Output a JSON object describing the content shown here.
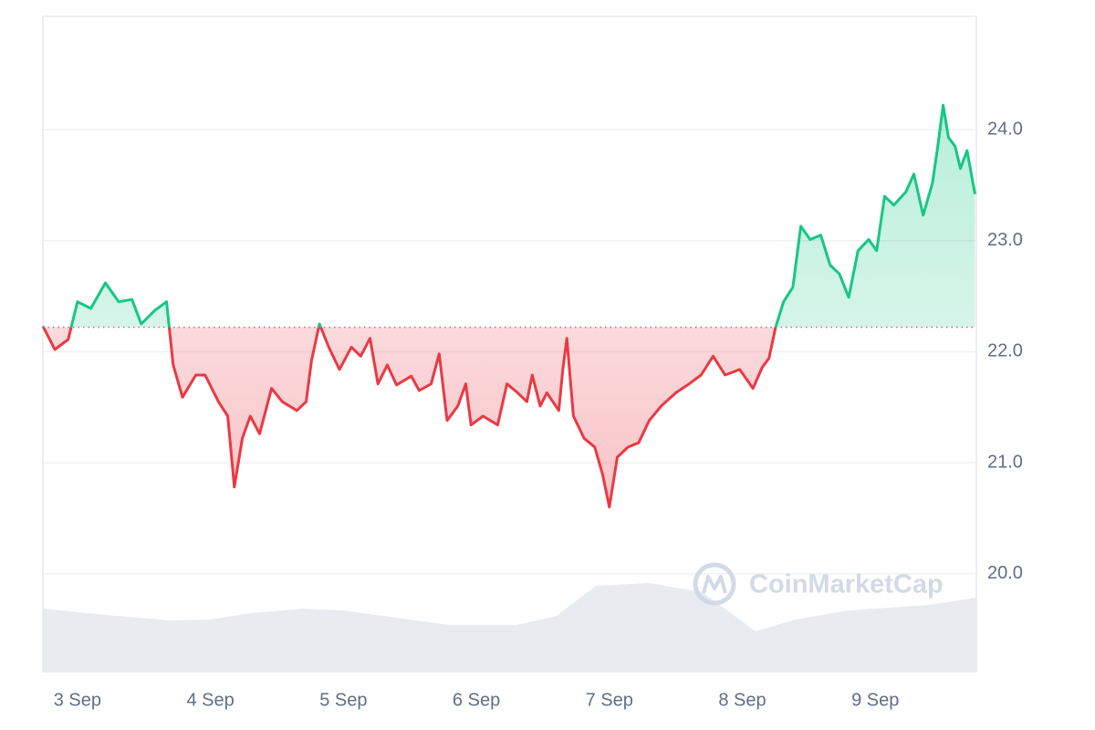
{
  "chart_data": {
    "type": "line",
    "x": [
      -0.26,
      -0.17,
      -0.07,
      0,
      0.1,
      0.21,
      0.31,
      0.41,
      0.48,
      0.58,
      0.67,
      0.72,
      0.79,
      0.89,
      0.96,
      1.06,
      1.13,
      1.18,
      1.24,
      1.3,
      1.37,
      1.46,
      1.54,
      1.65,
      1.72,
      1.76,
      1.82,
      1.89,
      1.97,
      2.06,
      2.13,
      2.2,
      2.26,
      2.33,
      2.4,
      2.51,
      2.57,
      2.66,
      2.72,
      2.78,
      2.86,
      2.92,
      2.96,
      3.05,
      3.16,
      3.23,
      3.31,
      3.38,
      3.42,
      3.48,
      3.53,
      3.62,
      3.65,
      3.68,
      3.73,
      3.81,
      3.89,
      3.95,
      4.0,
      4.06,
      4.14,
      4.22,
      4.3,
      4.39,
      4.5,
      4.6,
      4.69,
      4.78,
      4.87,
      4.98,
      5.08,
      5.15,
      5.2,
      5.25,
      5.31,
      5.38,
      5.44,
      5.51,
      5.59,
      5.66,
      5.73,
      5.8,
      5.87,
      5.95,
      6.01,
      6.07,
      6.14,
      6.23,
      6.29,
      6.36,
      6.43,
      6.47,
      6.51,
      6.55,
      6.6,
      6.64,
      6.69,
      6.75
    ],
    "values": [
      22.23,
      22.02,
      22.11,
      22.45,
      22.39,
      22.62,
      22.45,
      22.47,
      22.25,
      22.37,
      22.45,
      21.88,
      21.59,
      21.79,
      21.79,
      21.55,
      21.42,
      20.78,
      21.22,
      21.42,
      21.26,
      21.67,
      21.55,
      21.47,
      21.55,
      21.92,
      22.25,
      22.04,
      21.84,
      22.04,
      21.96,
      22.12,
      21.71,
      21.88,
      21.7,
      21.78,
      21.65,
      21.71,
      21.98,
      21.38,
      21.51,
      21.71,
      21.34,
      21.42,
      21.34,
      21.71,
      21.63,
      21.55,
      21.79,
      21.51,
      21.63,
      21.47,
      21.84,
      22.12,
      21.42,
      21.22,
      21.14,
      20.89,
      20.6,
      21.05,
      21.14,
      21.18,
      21.38,
      21.51,
      21.63,
      21.71,
      21.79,
      21.96,
      21.79,
      21.84,
      21.67,
      21.86,
      21.94,
      22.22,
      22.45,
      22.58,
      23.13,
      23.01,
      23.05,
      22.78,
      22.7,
      22.49,
      22.91,
      23.01,
      22.91,
      23.4,
      23.32,
      23.44,
      23.6,
      23.23,
      23.52,
      23.85,
      24.22,
      23.93,
      23.85,
      23.65,
      23.81,
      23.42
    ],
    "baseline": 22.22,
    "up_color": "#16c784",
    "down_color": "#ea3943",
    "xlim": [
      -0.26,
      6.76
    ],
    "xticks": [
      {
        "value": 0,
        "label": "3 Sep"
      },
      {
        "value": 1,
        "label": "4 Sep"
      },
      {
        "value": 2,
        "label": "5 Sep"
      },
      {
        "value": 3,
        "label": "6 Sep"
      },
      {
        "value": 4,
        "label": "7 Sep"
      },
      {
        "value": 5,
        "label": "8 Sep"
      },
      {
        "value": 6,
        "label": "9 Sep"
      }
    ],
    "ylim": [
      19.11,
      25.02
    ],
    "yticks": [
      {
        "value": 20,
        "label": "20.0"
      },
      {
        "value": 21,
        "label": "21.0"
      },
      {
        "value": 22,
        "label": "22.0"
      },
      {
        "value": 23,
        "label": "23.0"
      },
      {
        "value": 24,
        "label": "24.0"
      }
    ],
    "grid": true,
    "volume": {
      "x": [
        -0.26,
        0.3,
        0.7,
        1.0,
        1.3,
        1.7,
        2.0,
        2.4,
        2.8,
        3.3,
        3.6,
        3.9,
        4.3,
        4.7,
        5.1,
        5.4,
        5.8,
        6.4,
        6.76
      ],
      "values": [
        70,
        62,
        57,
        58,
        65,
        70,
        68,
        60,
        52,
        52,
        62,
        95,
        98,
        88,
        45,
        58,
        68,
        74,
        82
      ],
      "ylim": [
        0,
        100
      ],
      "color": "#e8ebef"
    },
    "watermark": "CoinMarketCap"
  }
}
